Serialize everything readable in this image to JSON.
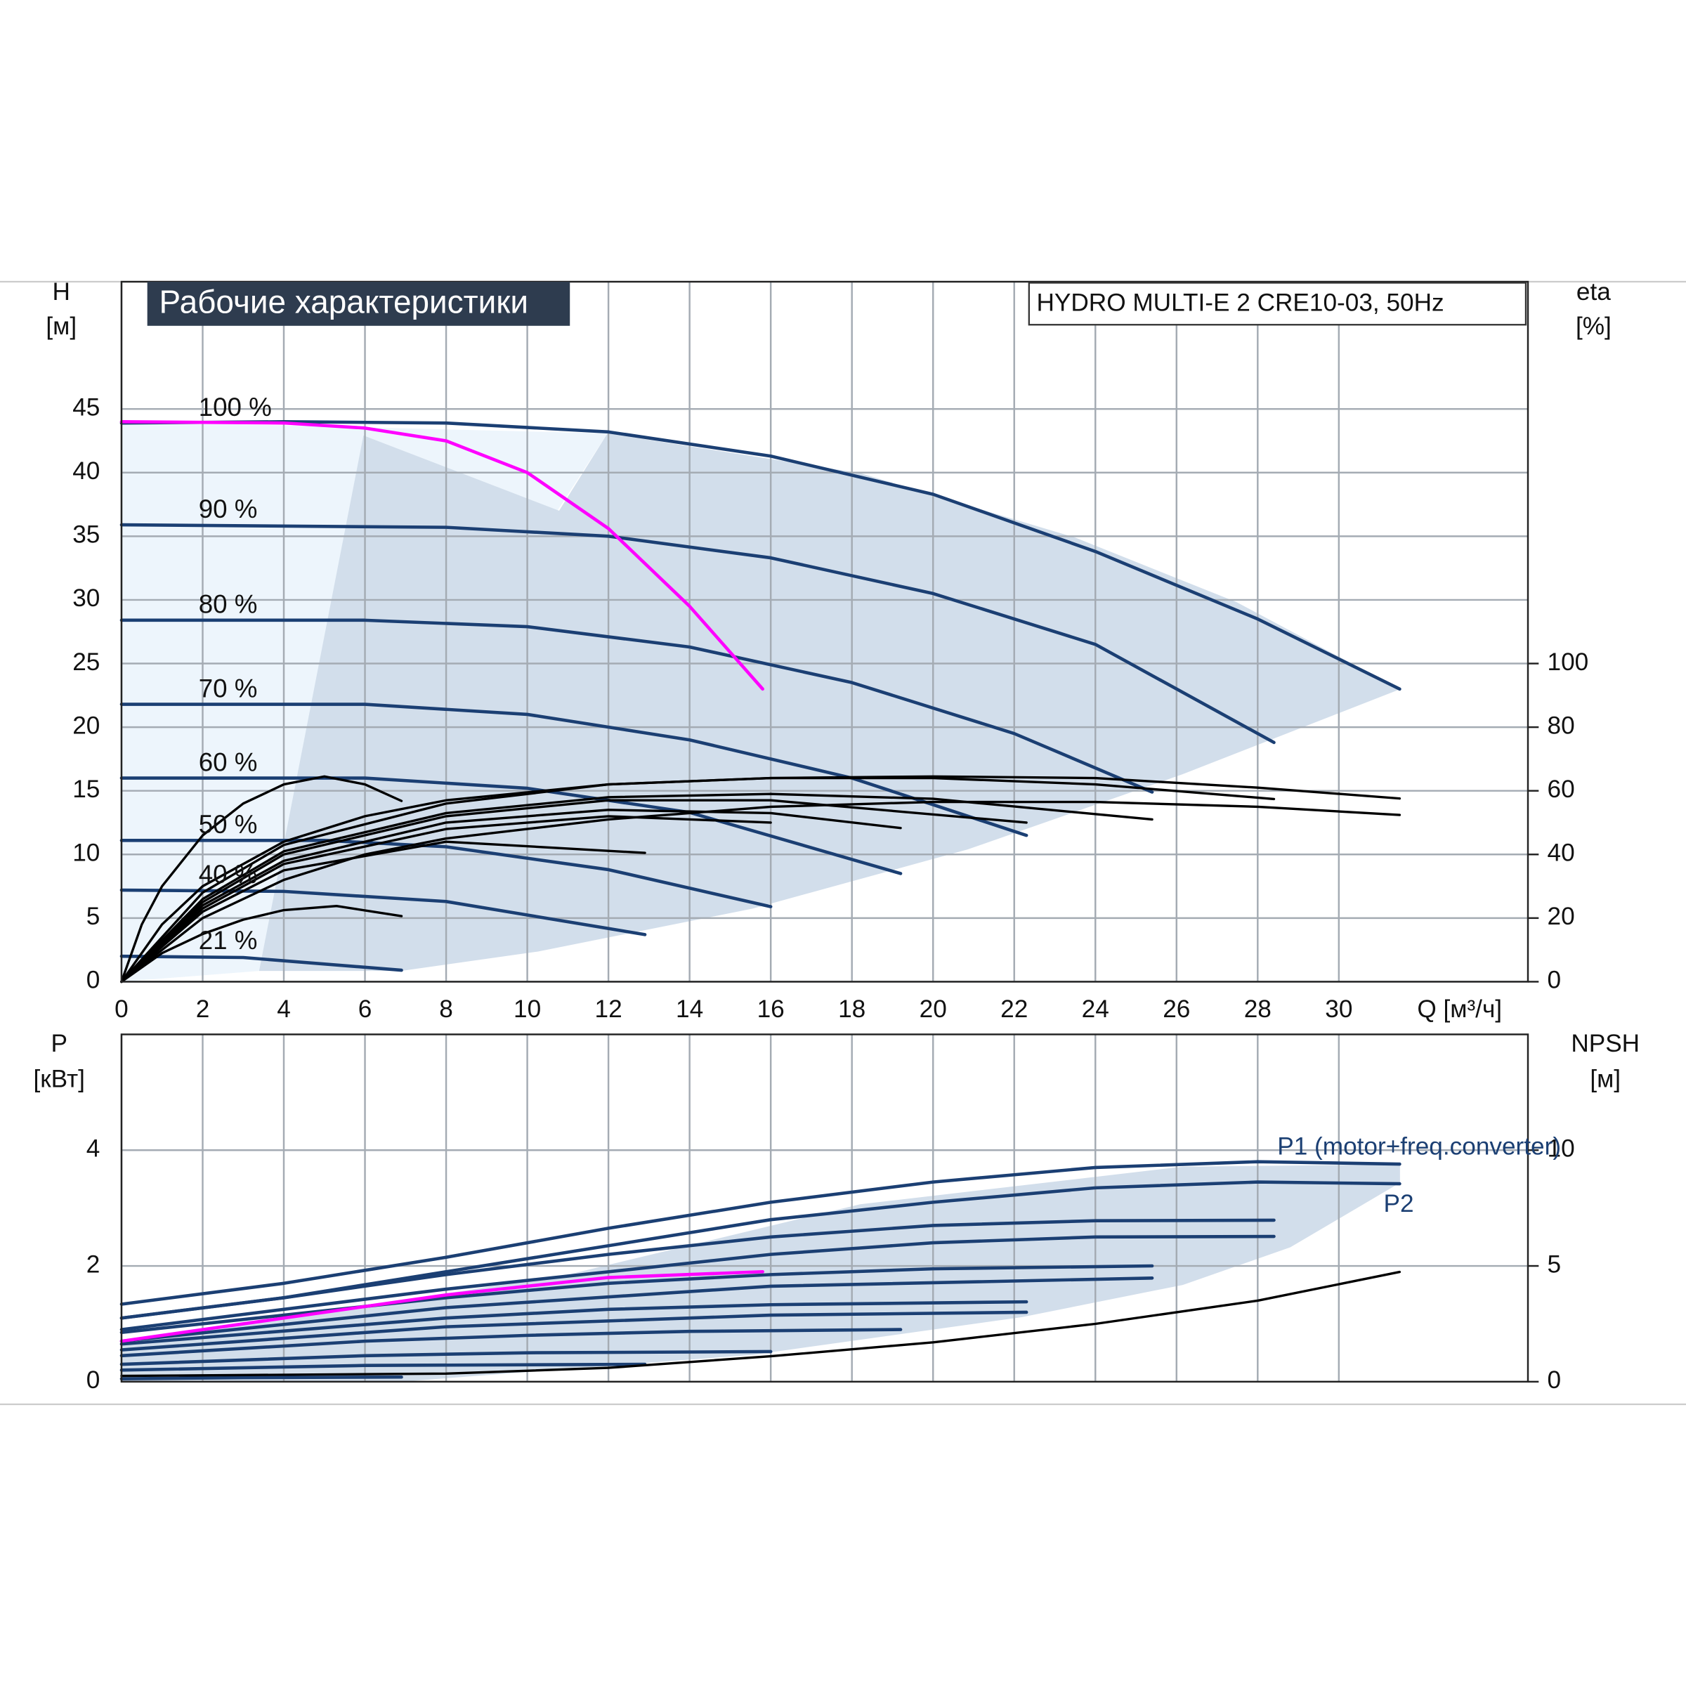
{
  "chart_data": [
    {
      "type": "line",
      "title": "Рабочие характеристики",
      "subtitle": "HYDRO MULTI-E 2 CRE10-03, 50Hz",
      "xlabel": "Q [м³/ч]",
      "ylabel": [
        "H",
        "[м]"
      ],
      "y2label": [
        "eta",
        "[%]"
      ],
      "xlim": [
        0,
        34.66
      ],
      "ylim": [
        0,
        55
      ],
      "y2lim": [
        0,
        220
      ],
      "xticks": [
        0,
        2,
        4,
        6,
        8,
        10,
        12,
        14,
        16,
        18,
        20,
        22,
        24,
        26,
        28,
        30
      ],
      "yticks": [
        0,
        5,
        10,
        15,
        20,
        25,
        30,
        35,
        40,
        45
      ],
      "y2ticks": [
        0,
        20,
        40,
        60,
        80,
        100
      ],
      "grid": true,
      "series": [
        {
          "name": "100 %",
          "color": "#1b3f73",
          "x": [
            0,
            4,
            8,
            12,
            16,
            20,
            24,
            28,
            31.5
          ],
          "values": [
            43.9,
            44,
            43.9,
            43.2,
            41.3,
            38.3,
            33.8,
            28.5,
            23
          ]
        },
        {
          "name": "90 %",
          "color": "#1b3f73",
          "x": [
            0,
            8,
            12,
            16,
            20,
            24,
            28.4
          ],
          "values": [
            35.9,
            35.7,
            35,
            33.3,
            30.5,
            26.5,
            18.8
          ]
        },
        {
          "name": "80 %",
          "color": "#1b3f73",
          "x": [
            0,
            6,
            10,
            14,
            18,
            22,
            25.4
          ],
          "values": [
            28.4,
            28.4,
            27.9,
            26.3,
            23.5,
            19.5,
            14.9
          ]
        },
        {
          "name": "70 %",
          "color": "#1b3f73",
          "x": [
            0,
            6,
            10,
            14,
            18,
            22.3
          ],
          "values": [
            21.8,
            21.8,
            21,
            19,
            16,
            11.5
          ]
        },
        {
          "name": "60 %",
          "color": "#1b3f73",
          "x": [
            0,
            6,
            10,
            14,
            19.2
          ],
          "values": [
            16,
            16,
            15.2,
            13.3,
            8.5
          ]
        },
        {
          "name": "50 %",
          "color": "#1b3f73",
          "x": [
            0,
            5,
            8,
            12,
            16
          ],
          "values": [
            11.1,
            11.1,
            10.6,
            8.8,
            5.9
          ]
        },
        {
          "name": "40 %",
          "color": "#1b3f73",
          "x": [
            0,
            4,
            8,
            12.9
          ],
          "values": [
            7.2,
            7.1,
            6.3,
            3.7
          ]
        },
        {
          "name": "21 %",
          "color": "#1b3f73",
          "x": [
            0,
            3,
            6.9
          ],
          "values": [
            2,
            1.9,
            0.9
          ]
        },
        {
          "color": "#ff00ff",
          "x": [
            0,
            4,
            6,
            8,
            10,
            12,
            14,
            15.8
          ],
          "values": [
            44,
            43.9,
            43.5,
            42.5,
            40,
            35.6,
            29.5,
            23
          ]
        },
        {
          "color": "#000000",
          "axis": "y2",
          "x": [
            0,
            1,
            2,
            4,
            6,
            8,
            12,
            16,
            20,
            24,
            28,
            31.5
          ],
          "values": [
            0,
            18,
            30,
            44,
            52,
            57,
            62,
            64,
            64.5,
            64,
            61,
            57.6
          ]
        },
        {
          "color": "#000000",
          "axis": "y2",
          "x": [
            0,
            2,
            4,
            6,
            8,
            12,
            16,
            20,
            24,
            28,
            31.5
          ],
          "values": [
            0,
            20,
            32,
            40,
            45,
            51,
            55,
            56.5,
            56.5,
            55,
            52.4
          ]
        },
        {
          "color": "#000000",
          "axis": "y2",
          "x": [
            0,
            2,
            4,
            8,
            12,
            16,
            20,
            24,
            28.4
          ],
          "values": [
            0,
            28,
            43,
            56,
            62,
            64,
            64,
            62,
            57.4
          ]
        },
        {
          "color": "#000000",
          "axis": "y2",
          "x": [
            0,
            2,
            4,
            8,
            12,
            16,
            20,
            25.4
          ],
          "values": [
            0,
            26,
            41,
            53,
            58,
            59,
            57.5,
            51
          ]
        },
        {
          "color": "#000000",
          "axis": "y2",
          "x": [
            0,
            2,
            4,
            8,
            12,
            16,
            22.3
          ],
          "values": [
            0,
            25,
            40,
            52,
            57,
            57,
            50
          ]
        },
        {
          "color": "#000000",
          "axis": "y2",
          "x": [
            0,
            2,
            4,
            8,
            12,
            16,
            19.2
          ],
          "values": [
            0,
            24,
            38,
            50,
            54,
            53,
            48.3
          ]
        },
        {
          "color": "#000000",
          "axis": "y2",
          "x": [
            0,
            2,
            4,
            8,
            12,
            16
          ],
          "values": [
            0,
            23,
            37,
            48,
            52,
            50
          ]
        },
        {
          "color": "#000000",
          "axis": "y2",
          "x": [
            0,
            2,
            4,
            8,
            12.9
          ],
          "values": [
            0,
            22,
            35,
            44,
            40.5
          ]
        },
        {
          "color": "#000000",
          "axis": "y2",
          "x": [
            0,
            0.5,
            1,
            2,
            3,
            4,
            5,
            6,
            6.9
          ],
          "values": [
            0,
            18,
            30,
            46,
            56,
            62,
            64.5,
            62,
            56.8
          ]
        },
        {
          "color": "#000000",
          "axis": "y2",
          "x": [
            0,
            1,
            2,
            3,
            4,
            5.3,
            6.9
          ],
          "values": [
            0,
            9,
            15,
            19.5,
            22.5,
            23.8,
            20.6
          ]
        }
      ]
    },
    {
      "type": "line",
      "ylabel": [
        "P",
        "[кВт]"
      ],
      "y2label": [
        "NPSH",
        "[м]"
      ],
      "xlim": [
        0,
        34.66
      ],
      "ylim": [
        0,
        6
      ],
      "y2lim": [
        0,
        15
      ],
      "yticks": [
        0,
        2,
        4
      ],
      "y2ticks": [
        0,
        5,
        10
      ],
      "grid": true,
      "series": [
        {
          "name": "P1 (motor+freq.converter)",
          "color": "#1b3f73",
          "x": [
            0,
            4,
            8,
            12,
            16,
            20,
            24,
            28,
            31.5
          ],
          "values": [
            1.34,
            1.7,
            2.15,
            2.65,
            3.1,
            3.45,
            3.7,
            3.8,
            3.76
          ]
        },
        {
          "name": "P2",
          "color": "#1b3f73",
          "x": [
            0,
            4,
            8,
            12,
            16,
            20,
            24,
            28,
            31.5
          ],
          "values": [
            1.1,
            1.45,
            1.9,
            2.35,
            2.8,
            3.1,
            3.35,
            3.45,
            3.42
          ]
        },
        {
          "color": "#1b3f73",
          "x": [
            0,
            4,
            8,
            12,
            16,
            20,
            24,
            28.4
          ],
          "values": [
            1.1,
            1.45,
            1.85,
            2.2,
            2.5,
            2.7,
            2.78,
            2.79
          ]
        },
        {
          "color": "#1b3f73",
          "x": [
            0,
            8,
            16,
            20,
            24,
            28.4
          ],
          "values": [
            0.9,
            1.6,
            2.2,
            2.4,
            2.5,
            2.51
          ]
        },
        {
          "color": "#1b3f73",
          "x": [
            0,
            4,
            8,
            12,
            16,
            20,
            25.4
          ],
          "values": [
            0.85,
            1.15,
            1.45,
            1.7,
            1.85,
            1.95,
            2
          ]
        },
        {
          "color": "#1b3f73",
          "x": [
            0,
            8,
            16,
            25.4
          ],
          "values": [
            0.7,
            1.28,
            1.65,
            1.79
          ]
        },
        {
          "color": "#1b3f73",
          "x": [
            0,
            8,
            12,
            16,
            22.3
          ],
          "values": [
            0.65,
            1.1,
            1.25,
            1.33,
            1.38
          ]
        },
        {
          "color": "#1b3f73",
          "x": [
            0,
            8,
            16,
            22.3
          ],
          "values": [
            0.55,
            0.95,
            1.15,
            1.2
          ]
        },
        {
          "color": "#1b3f73",
          "x": [
            0,
            6,
            10,
            14,
            19.2
          ],
          "values": [
            0.45,
            0.7,
            0.8,
            0.87,
            0.9
          ]
        },
        {
          "color": "#1b3f73",
          "x": [
            0,
            6,
            10,
            16
          ],
          "values": [
            0.3,
            0.45,
            0.5,
            0.52
          ]
        },
        {
          "color": "#1b3f73",
          "x": [
            0,
            6,
            12.9
          ],
          "values": [
            0.2,
            0.28,
            0.3
          ]
        },
        {
          "color": "#1b3f73",
          "x": [
            0,
            3,
            6.9
          ],
          "values": [
            0.05,
            0.07,
            0.08
          ]
        },
        {
          "color": "#ff00ff",
          "x": [
            0,
            4,
            8,
            12,
            15.8
          ],
          "values": [
            0.7,
            1.1,
            1.5,
            1.8,
            1.9
          ]
        },
        {
          "color": "#000000",
          "axis": "y2",
          "x": [
            0,
            8,
            12,
            16,
            20,
            24,
            28,
            31.5
          ],
          "values": [
            0.25,
            0.35,
            0.6,
            1.1,
            1.7,
            2.5,
            3.5,
            4.74
          ]
        }
      ]
    }
  ]
}
